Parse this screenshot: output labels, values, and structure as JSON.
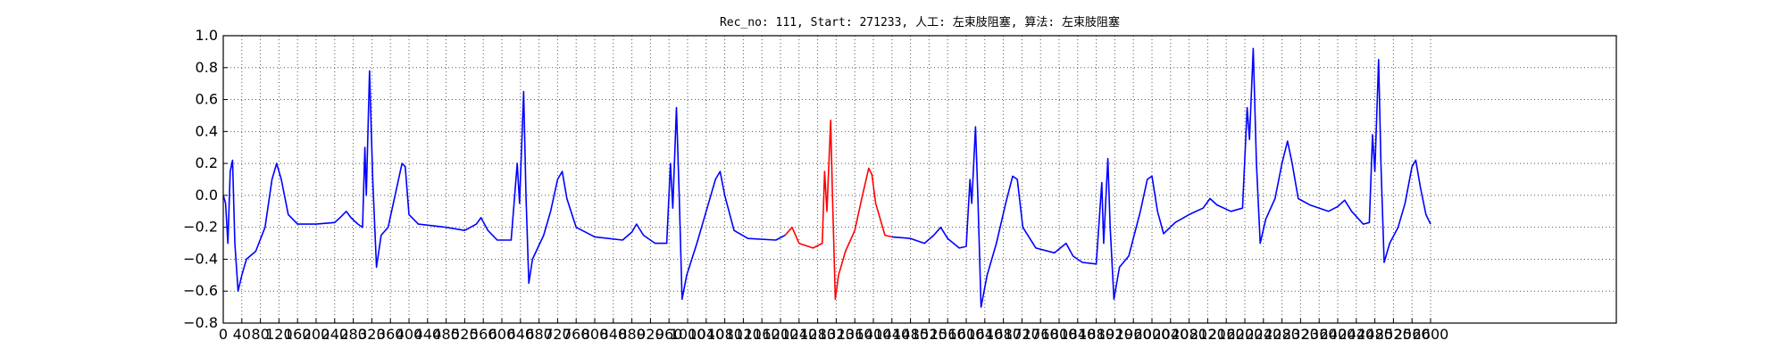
{
  "chart_data": {
    "type": "line",
    "title": "Rec_no: 111, Start: 271233, 人工: 左束肢阻塞, 算法: 左束肢阻塞",
    "xlabel": "",
    "ylabel": "",
    "xlim": [
      0,
      3000
    ],
    "ylim": [
      -0.8,
      1.0
    ],
    "grid": true,
    "yticks": [
      "1.0",
      "0.8",
      "0.6",
      "0.4",
      "0.2",
      "0.0",
      "−0.2",
      "−0.4",
      "−0.6",
      "−0.8"
    ],
    "xticks": [
      "0",
      "40",
      "80",
      "120",
      "160",
      "200",
      "240",
      "280",
      "320",
      "360",
      "400",
      "440",
      "480",
      "520",
      "560",
      "600",
      "640",
      "680",
      "720",
      "760",
      "800",
      "840",
      "880",
      "920",
      "960",
      "1000",
      "1040",
      "1080",
      "1120",
      "1160",
      "1200",
      "1240",
      "1280",
      "1320",
      "1360",
      "1400",
      "1440",
      "1480",
      "1520",
      "1560",
      "1600",
      "1640",
      "1680",
      "1720",
      "1760",
      "1800",
      "1840",
      "1880",
      "1920",
      "1960",
      "2000",
      "2040",
      "2080",
      "2120",
      "2160",
      "2200",
      "2240",
      "2280",
      "2320",
      "2360",
      "2400",
      "2440",
      "2480",
      "2520",
      "2560",
      "2600"
    ],
    "colors": {
      "signal": "#0000ff",
      "highlight": "#ff0000"
    },
    "series": [
      {
        "color": "#0000ff",
        "points": [
          [
            0,
            0.0
          ],
          [
            5,
            -0.05
          ],
          [
            10,
            -0.3
          ],
          [
            15,
            0.15
          ],
          [
            20,
            0.22
          ],
          [
            25,
            -0.3
          ],
          [
            32,
            -0.6
          ],
          [
            40,
            -0.5
          ],
          [
            50,
            -0.4
          ],
          [
            70,
            -0.35
          ],
          [
            90,
            -0.2
          ],
          [
            105,
            0.1
          ],
          [
            115,
            0.2
          ],
          [
            125,
            0.1
          ],
          [
            140,
            -0.12
          ],
          [
            160,
            -0.18
          ],
          [
            200,
            -0.18
          ],
          [
            240,
            -0.17
          ],
          [
            255,
            -0.13
          ],
          [
            265,
            -0.1
          ],
          [
            275,
            -0.14
          ],
          [
            290,
            -0.18
          ],
          [
            300,
            -0.2
          ],
          [
            305,
            0.3
          ],
          [
            308,
            0.0
          ],
          [
            315,
            0.78
          ],
          [
            322,
            0.1
          ],
          [
            330,
            -0.45
          ],
          [
            340,
            -0.25
          ],
          [
            355,
            -0.2
          ],
          [
            370,
            0.0
          ],
          [
            385,
            0.2
          ],
          [
            392,
            0.18
          ],
          [
            400,
            -0.12
          ],
          [
            420,
            -0.18
          ],
          [
            480,
            -0.2
          ],
          [
            520,
            -0.22
          ],
          [
            545,
            -0.18
          ],
          [
            555,
            -0.14
          ],
          [
            570,
            -0.22
          ],
          [
            590,
            -0.28
          ],
          [
            620,
            -0.28
          ],
          [
            633,
            0.2
          ],
          [
            638,
            -0.05
          ],
          [
            647,
            0.65
          ],
          [
            652,
            0.0
          ],
          [
            658,
            -0.55
          ],
          [
            666,
            -0.4
          ],
          [
            690,
            -0.25
          ],
          [
            705,
            -0.1
          ],
          [
            720,
            0.1
          ],
          [
            730,
            0.15
          ],
          [
            740,
            -0.02
          ],
          [
            760,
            -0.2
          ],
          [
            800,
            -0.26
          ],
          [
            860,
            -0.28
          ],
          [
            880,
            -0.23
          ],
          [
            890,
            -0.18
          ],
          [
            905,
            -0.25
          ],
          [
            930,
            -0.3
          ],
          [
            955,
            -0.3
          ],
          [
            963,
            0.2
          ],
          [
            968,
            -0.08
          ],
          [
            976,
            0.55
          ],
          [
            982,
            0.0
          ],
          [
            988,
            -0.65
          ],
          [
            998,
            -0.5
          ],
          [
            1020,
            -0.3
          ],
          [
            1040,
            -0.1
          ],
          [
            1060,
            0.1
          ],
          [
            1070,
            0.15
          ],
          [
            1080,
            0.0
          ],
          [
            1100,
            -0.22
          ],
          [
            1130,
            -0.27
          ],
          [
            1190,
            -0.28
          ],
          [
            1210,
            -0.25
          ]
        ]
      },
      {
        "color": "#ff0000",
        "points": [
          [
            1210,
            -0.25
          ],
          [
            1225,
            -0.2
          ],
          [
            1240,
            -0.3
          ],
          [
            1270,
            -0.33
          ],
          [
            1290,
            -0.3
          ],
          [
            1295,
            0.15
          ],
          [
            1300,
            -0.1
          ],
          [
            1308,
            0.47
          ],
          [
            1312,
            0.0
          ],
          [
            1318,
            -0.65
          ],
          [
            1325,
            -0.5
          ],
          [
            1340,
            -0.35
          ],
          [
            1360,
            -0.22
          ],
          [
            1375,
            -0.02
          ],
          [
            1390,
            0.17
          ],
          [
            1397,
            0.13
          ],
          [
            1405,
            -0.05
          ],
          [
            1425,
            -0.25
          ],
          [
            1440,
            -0.26
          ]
        ]
      },
      {
        "color": "#0000ff",
        "points": [
          [
            1440,
            -0.26
          ],
          [
            1480,
            -0.27
          ],
          [
            1510,
            -0.3
          ],
          [
            1530,
            -0.25
          ],
          [
            1545,
            -0.2
          ],
          [
            1560,
            -0.27
          ],
          [
            1585,
            -0.33
          ],
          [
            1600,
            -0.32
          ],
          [
            1608,
            0.1
          ],
          [
            1612,
            -0.05
          ],
          [
            1620,
            0.43
          ],
          [
            1625,
            0.0
          ],
          [
            1632,
            -0.7
          ],
          [
            1645,
            -0.5
          ],
          [
            1665,
            -0.3
          ],
          [
            1685,
            -0.05
          ],
          [
            1700,
            0.12
          ],
          [
            1710,
            0.1
          ],
          [
            1722,
            -0.2
          ],
          [
            1750,
            -0.33
          ],
          [
            1790,
            -0.36
          ],
          [
            1815,
            -0.3
          ],
          [
            1830,
            -0.38
          ],
          [
            1850,
            -0.42
          ],
          [
            1880,
            -0.43
          ],
          [
            1892,
            0.08
          ],
          [
            1896,
            -0.3
          ],
          [
            1905,
            0.23
          ],
          [
            1910,
            -0.2
          ],
          [
            1918,
            -0.65
          ],
          [
            1930,
            -0.45
          ],
          [
            1950,
            -0.38
          ],
          [
            1975,
            -0.1
          ],
          [
            1990,
            0.1
          ],
          [
            2000,
            0.12
          ],
          [
            2012,
            -0.1
          ],
          [
            2025,
            -0.24
          ],
          [
            2050,
            -0.17
          ],
          [
            2080,
            -0.12
          ],
          [
            2110,
            -0.08
          ],
          [
            2125,
            -0.02
          ],
          [
            2140,
            -0.06
          ],
          [
            2170,
            -0.1
          ],
          [
            2195,
            -0.08
          ],
          [
            2205,
            0.55
          ],
          [
            2210,
            0.35
          ],
          [
            2218,
            0.92
          ],
          [
            2225,
            0.2
          ],
          [
            2233,
            -0.3
          ],
          [
            2245,
            -0.15
          ],
          [
            2265,
            -0.02
          ],
          [
            2280,
            0.2
          ],
          [
            2292,
            0.34
          ],
          [
            2302,
            0.2
          ],
          [
            2315,
            -0.02
          ],
          [
            2340,
            -0.06
          ],
          [
            2380,
            -0.1
          ],
          [
            2400,
            -0.07
          ],
          [
            2415,
            -0.03
          ],
          [
            2430,
            -0.1
          ],
          [
            2455,
            -0.18
          ],
          [
            2468,
            -0.17
          ],
          [
            2475,
            0.38
          ],
          [
            2480,
            0.15
          ],
          [
            2488,
            0.85
          ],
          [
            2493,
            0.2
          ],
          [
            2500,
            -0.42
          ],
          [
            2512,
            -0.3
          ],
          [
            2530,
            -0.2
          ],
          [
            2545,
            -0.05
          ],
          [
            2560,
            0.18
          ],
          [
            2568,
            0.22
          ],
          [
            2578,
            0.05
          ],
          [
            2590,
            -0.12
          ],
          [
            2600,
            -0.18
          ]
        ]
      }
    ]
  }
}
